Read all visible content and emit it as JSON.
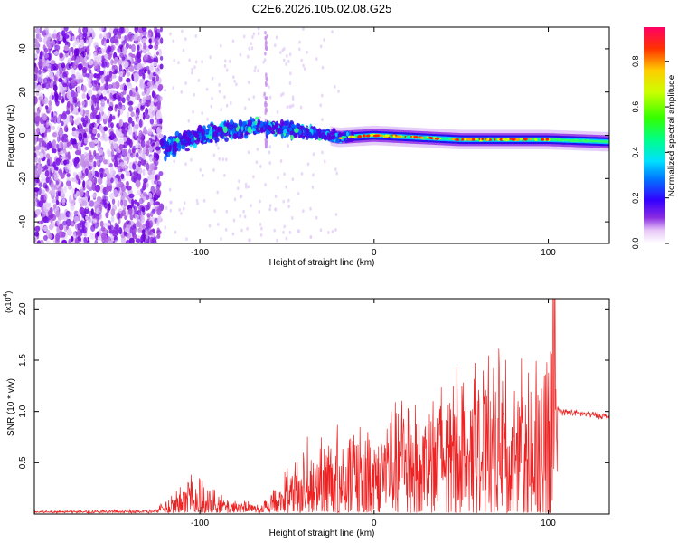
{
  "title": "C2E6.2026.105.02.08.G25",
  "chart_data": [
    {
      "type": "heatmap",
      "xlabel": "Height of straight line (km)",
      "ylabel": "Frequency (Hz)",
      "xlim": [
        -195,
        135
      ],
      "ylim": [
        -50,
        50
      ],
      "xticks": [
        -100,
        0,
        100
      ],
      "yticks": [
        -40,
        -20,
        0,
        20,
        40
      ],
      "colorbar": {
        "label": "Normalized spectral amplitude",
        "range": [
          0,
          0.95
        ],
        "ticks": [
          "0.0",
          "0.2",
          "0.4",
          "0.6",
          "0.8"
        ]
      },
      "band": {
        "noise_region_x": [
          -195,
          -122
        ],
        "signal_region_x": [
          -122,
          135
        ],
        "center_freq_hz": [
          {
            "x": -120,
            "f": -6
          },
          {
            "x": -100,
            "f": 0
          },
          {
            "x": -70,
            "f": 4
          },
          {
            "x": -40,
            "f": 2
          },
          {
            "x": -20,
            "f": -1
          },
          {
            "x": 0,
            "f": 0
          },
          {
            "x": 50,
            "f": -2
          },
          {
            "x": 100,
            "f": -2
          },
          {
            "x": 135,
            "f": -3
          }
        ]
      }
    },
    {
      "type": "line",
      "xlabel": "Height of straight line (km)",
      "ylabel": "SNR (10 * v/v)",
      "scale_label": "(x10",
      "scale_exp": "4",
      "xlim": [
        -195,
        135
      ],
      "ylim": [
        0,
        2.1
      ],
      "xticks": [
        -100,
        0,
        100
      ],
      "yticks": [
        "0.5",
        "1.0",
        "1.5",
        "2.0"
      ],
      "color": "#ee2222",
      "envelope": [
        {
          "x": -195,
          "base": 0.02,
          "amp": 0.02
        },
        {
          "x": -125,
          "base": 0.02,
          "amp": 0.03
        },
        {
          "x": -118,
          "base": 0.08,
          "amp": 0.15
        },
        {
          "x": -105,
          "base": 0.15,
          "amp": 0.3
        },
        {
          "x": -95,
          "base": 0.1,
          "amp": 0.2
        },
        {
          "x": -85,
          "base": 0.07,
          "amp": 0.1
        },
        {
          "x": -65,
          "base": 0.05,
          "amp": 0.06
        },
        {
          "x": -55,
          "base": 0.12,
          "amp": 0.25
        },
        {
          "x": -40,
          "base": 0.3,
          "amp": 0.5
        },
        {
          "x": -20,
          "base": 0.35,
          "amp": 0.65
        },
        {
          "x": -5,
          "base": 0.35,
          "amp": 0.6
        },
        {
          "x": 15,
          "base": 0.5,
          "amp": 0.8
        },
        {
          "x": 40,
          "base": 0.55,
          "amp": 0.95
        },
        {
          "x": 70,
          "base": 0.6,
          "amp": 1.1
        },
        {
          "x": 95,
          "base": 0.55,
          "amp": 1.0
        },
        {
          "x": 103,
          "base": 0.5,
          "amp": 1.5
        },
        {
          "x": 106,
          "base": 1.0,
          "amp": 0.04
        },
        {
          "x": 135,
          "base": 0.95,
          "amp": 0.04
        }
      ]
    }
  ]
}
